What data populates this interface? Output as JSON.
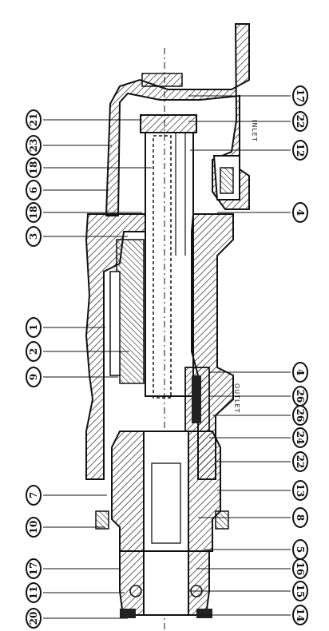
{
  "drawing": {
    "inline_labels": {
      "inlet": "INLET",
      "outlet": "OUTLET"
    },
    "left_balloons": [
      "21",
      "23",
      "18",
      "6",
      "18",
      "3",
      "1",
      "2",
      "9",
      "7",
      "10",
      "17",
      "11",
      "20"
    ],
    "right_balloons": [
      "17",
      "22",
      "12",
      "4",
      "4",
      "26",
      "26",
      "24",
      "22",
      "13",
      "8",
      "5",
      "16",
      "15",
      "14"
    ]
  }
}
